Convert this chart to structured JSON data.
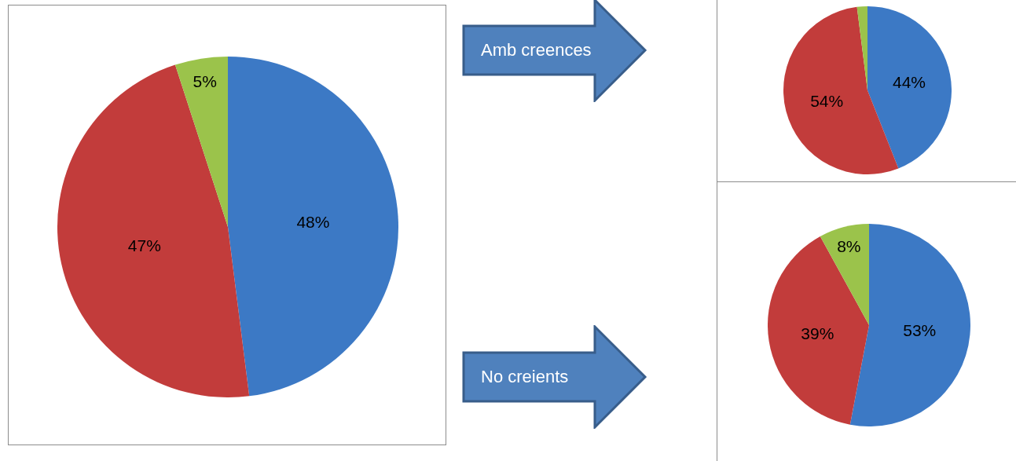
{
  "chart_data": [
    {
      "type": "pie",
      "categories": [
        null,
        null,
        null
      ],
      "values": [
        48,
        47,
        5
      ],
      "colors": [
        "#3c79c5",
        "#c23c3b",
        "#9bc34b"
      ],
      "value_labels": [
        "48%",
        "47%",
        "5%"
      ]
    },
    {
      "type": "pie",
      "categories": [
        null,
        null,
        null
      ],
      "values": [
        44,
        54,
        2
      ],
      "colors": [
        "#3c79c5",
        "#c23c3b",
        "#9bc34b"
      ],
      "value_labels": [
        "44%",
        "54%",
        null
      ],
      "annotations": [
        "Amb creences"
      ]
    },
    {
      "type": "pie",
      "categories": [
        null,
        null,
        null
      ],
      "values": [
        53,
        39,
        8
      ],
      "colors": [
        "#3c79c5",
        "#c23c3b",
        "#9bc34b"
      ],
      "value_labels": [
        "53%",
        "39%",
        "8%"
      ],
      "annotations": [
        "No creients"
      ]
    }
  ]
}
